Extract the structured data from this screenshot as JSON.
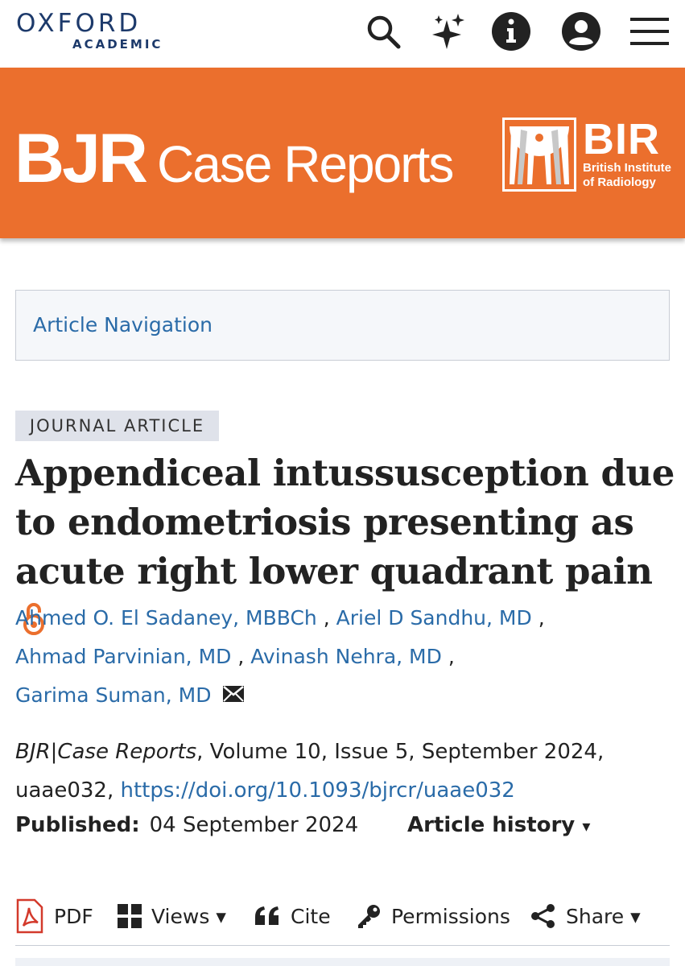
{
  "topbar": {
    "logo_line1": "OXFORD",
    "logo_line2": "ACADEMIC",
    "icons": [
      "search-icon",
      "sparkle-icon",
      "info-icon",
      "account-icon",
      "menu-icon"
    ]
  },
  "banner": {
    "journal_bold": "BJR",
    "journal_rest": "Case Reports",
    "publisher_abbr": "BIR",
    "publisher_line1": "British Institute",
    "publisher_line2": "of Radiology",
    "color": "#eb6f2d"
  },
  "article_nav": {
    "label": "Article Navigation"
  },
  "article": {
    "type_badge": "JOURNAL ARTICLE",
    "title": "Appendiceal intussusception due to endometriosis presenting as acute right lower quadrant pain",
    "authors": [
      "Ahmed O. El Sadaney, MBBCh",
      "Ariel D Sandhu, MD",
      "Ahmad Parvinian, MD",
      "Avinash Nehra, MD",
      "Garima Suman, MD"
    ],
    "separator": ",",
    "citation_journal": "BJR|Case Reports",
    "citation_rest": ", Volume 10, Issue 5, September 2024,",
    "citation_id": "uaae032, ",
    "doi": "https://doi.org/10.1093/bjrcr/uaae032",
    "published_label": "Published:",
    "published_date": "04 September 2024",
    "history_label": "Article history"
  },
  "toolbar": {
    "pdf": "PDF",
    "views": "Views",
    "cite": "Cite",
    "permissions": "Permissions",
    "share": "Share",
    "caret": "▾"
  },
  "colors": {
    "link": "#2a6ba8",
    "oa_orange": "#eb6f2d",
    "logo_navy": "#1d3a6b"
  }
}
